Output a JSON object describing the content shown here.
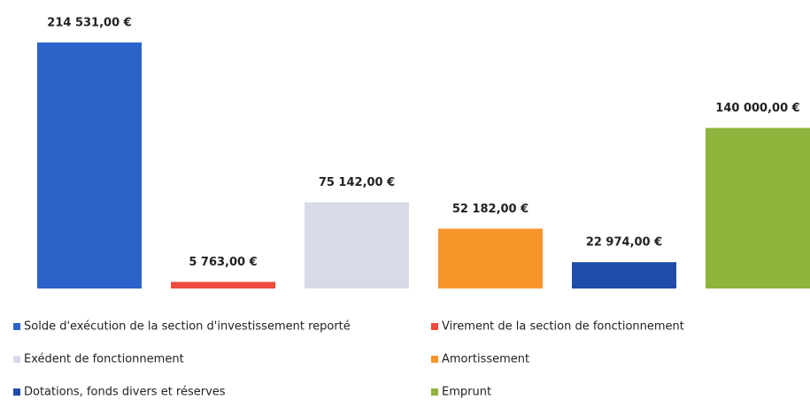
{
  "chart_data": {
    "type": "bar",
    "series": [
      {
        "name": "Solde d'exécution de la section d'investissement reporté",
        "color": "#2b63c9",
        "values": [
          214531
        ],
        "value_labels": [
          "214 531,00 €"
        ]
      },
      {
        "name": "Virement de la section de fonctionnement",
        "color": "#ef4a3d",
        "values": [
          5763
        ],
        "value_labels": [
          "5 763,00 €"
        ]
      },
      {
        "name": "Exédent de fonctionnement",
        "color": "#d7dbe9",
        "values": [
          75142
        ],
        "value_labels": [
          "75 142,00 €"
        ]
      },
      {
        "name": "Amortissement",
        "color": "#f7952b",
        "values": [
          52182
        ],
        "value_labels": [
          "52 182,00 €"
        ]
      },
      {
        "name": "Dotations, fonds divers et réserves",
        "color": "#1f4ba9",
        "values": [
          22974
        ],
        "value_labels": [
          "22 974,00 €"
        ]
      },
      {
        "name": "Emprunt",
        "color": "#8db43b",
        "values": [
          140000
        ],
        "value_labels": [
          "140 000,00 €"
        ]
      }
    ]
  }
}
